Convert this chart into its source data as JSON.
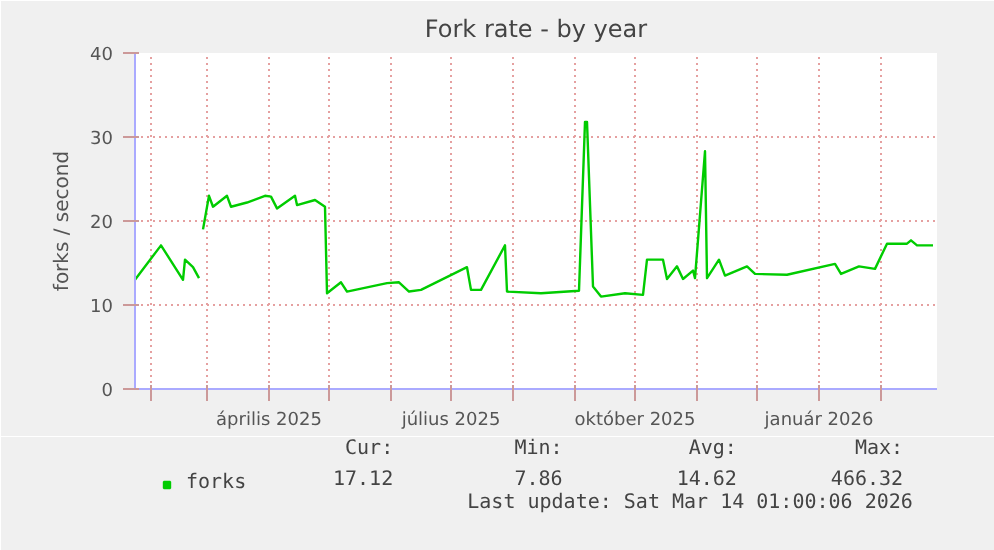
{
  "chart_data": {
    "type": "line",
    "title": "Fork rate - by year",
    "ylabel": "forks / second",
    "x": [
      "2025-01-24",
      "2025-02-06",
      "2025-02-17",
      "2025-02-18",
      "2025-02-22",
      "2025-02-25",
      "2025-02-26",
      "2025-02-27",
      "2025-03-02",
      "2025-03-04",
      "2025-03-11",
      "2025-03-13",
      "2025-03-21",
      "2025-03-30",
      "2025-04-02",
      "2025-04-05",
      "2025-04-14",
      "2025-04-15",
      "2025-04-24",
      "2025-04-29",
      "2025-04-30",
      "2025-05-07",
      "2025-05-10",
      "2025-05-30",
      "2025-06-05",
      "2025-06-10",
      "2025-06-16",
      "2025-07-09",
      "2025-07-11",
      "2025-07-16",
      "2025-07-28",
      "2025-07-29",
      "2025-08-15",
      "2025-09-03",
      "2025-09-06",
      "2025-09-07",
      "2025-09-10",
      "2025-09-14",
      "2025-09-26",
      "2025-10-05",
      "2025-10-07",
      "2025-10-15",
      "2025-10-17",
      "2025-10-22",
      "2025-10-25",
      "2025-10-30",
      "2025-10-31",
      "2025-11-05",
      "2025-11-06",
      "2025-11-12",
      "2025-11-15",
      "2025-11-26",
      "2025-11-30",
      "2025-12-16",
      "2026-01-09",
      "2026-01-12",
      "2026-01-21",
      "2026-01-29",
      "2026-02-04",
      "2026-02-14",
      "2026-02-16",
      "2026-02-19",
      "2026-02-27"
    ],
    "series": [
      {
        "name": "forks",
        "color": "#00cc00",
        "values": [
          13.0,
          17.1,
          13.0,
          15.4,
          14.5,
          13.2,
          null,
          19.0,
          23.0,
          21.7,
          23.0,
          21.7,
          22.2,
          23.0,
          22.9,
          21.5,
          23.0,
          21.9,
          22.5,
          21.7,
          11.4,
          12.7,
          11.6,
          12.6,
          12.7,
          11.6,
          11.8,
          14.5,
          11.8,
          11.8,
          17.1,
          11.6,
          11.4,
          11.7,
          31.8,
          31.8,
          12.2,
          11.0,
          11.4,
          11.2,
          15.4,
          15.4,
          13.1,
          14.6,
          13.1,
          14.1,
          13.2,
          28.3,
          13.2,
          15.4,
          13.5,
          14.6,
          13.7,
          13.6,
          14.9,
          13.7,
          14.6,
          14.3,
          17.3,
          17.3,
          17.7,
          17.1,
          17.1
        ]
      }
    ],
    "xlim": [
      "2025-01-24",
      "2026-03-01"
    ],
    "xticks": [
      {
        "value": "2025-02-01",
        "label": null
      },
      {
        "value": "2025-03-01",
        "label": null
      },
      {
        "value": "2025-04-01",
        "label": "április 2025"
      },
      {
        "value": "2025-05-01",
        "label": null
      },
      {
        "value": "2025-06-01",
        "label": null
      },
      {
        "value": "2025-07-01",
        "label": "július 2025"
      },
      {
        "value": "2025-08-01",
        "label": null
      },
      {
        "value": "2025-09-01",
        "label": null
      },
      {
        "value": "2025-10-01",
        "label": "október 2025"
      },
      {
        "value": "2025-11-01",
        "label": null
      },
      {
        "value": "2025-12-01",
        "label": null
      },
      {
        "value": "2026-01-01",
        "label": "január 2026"
      },
      {
        "value": "2026-02-01",
        "label": null
      }
    ],
    "ylim": [
      0,
      40
    ],
    "yticks": [
      0,
      10,
      20,
      30,
      40
    ],
    "grid": true,
    "legend": "bottom left",
    "marker": "none",
    "line_style": "solid",
    "annotations": [
      "Cur:",
      "Min:",
      "Avg:",
      "Max:",
      "17.12",
      "7.86",
      "14.62",
      "466.32",
      "Last update: Sat Mar 14 01:00:06 2026"
    ]
  }
}
